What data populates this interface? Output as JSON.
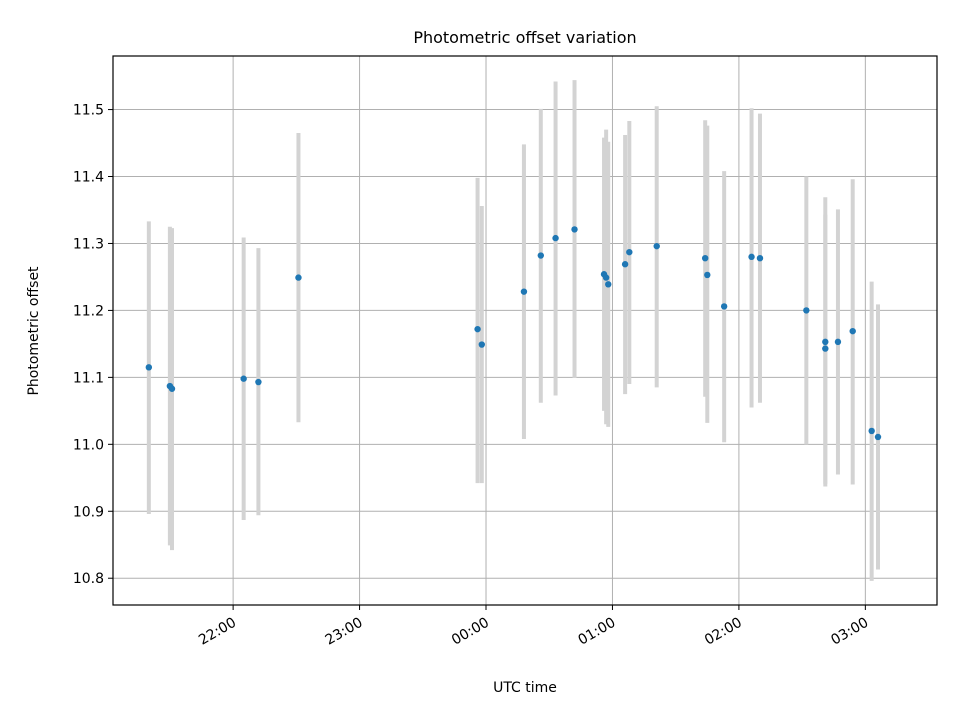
{
  "chart_data": {
    "type": "scatter",
    "title": "Photometric offset variation",
    "xlabel": "UTC time",
    "ylabel": "Photometric offset",
    "x_ticks": [
      "22:00",
      "23:00",
      "00:00",
      "01:00",
      "02:00",
      "03:00"
    ],
    "y_ticks": [
      "10.8",
      "10.9",
      "11.0",
      "11.1",
      "11.2",
      "11.3",
      "11.4",
      "11.5"
    ],
    "xlim": [
      "21:03",
      "03:34"
    ],
    "ylim": [
      10.76,
      11.58
    ],
    "grid": true,
    "colors": {
      "points": "#1f77b4",
      "errorbars": "#d3d3d3",
      "grid": "#b0b0b0"
    },
    "points": [
      {
        "t": "21:20",
        "y": 11.115,
        "lo": 10.896,
        "hi": 11.333
      },
      {
        "t": "21:30",
        "y": 11.087,
        "lo": 10.849,
        "hi": 11.325
      },
      {
        "t": "21:31",
        "y": 11.083,
        "lo": 10.842,
        "hi": 11.323
      },
      {
        "t": "22:05",
        "y": 11.098,
        "lo": 10.887,
        "hi": 11.309
      },
      {
        "t": "22:12",
        "y": 11.093,
        "lo": 10.894,
        "hi": 11.293
      },
      {
        "t": "22:31",
        "y": 11.249,
        "lo": 11.033,
        "hi": 11.465
      },
      {
        "t": "23:56",
        "y": 11.172,
        "lo": 10.942,
        "hi": 11.398
      },
      {
        "t": "23:58",
        "y": 11.149,
        "lo": 10.942,
        "hi": 11.356
      },
      {
        "t": "00:18",
        "y": 11.228,
        "lo": 11.008,
        "hi": 11.448
      },
      {
        "t": "00:26",
        "y": 11.282,
        "lo": 11.062,
        "hi": 11.501
      },
      {
        "t": "00:33",
        "y": 11.308,
        "lo": 11.073,
        "hi": 11.542
      },
      {
        "t": "00:42",
        "y": 11.321,
        "lo": 11.099,
        "hi": 11.544
      },
      {
        "t": "00:56",
        "y": 11.254,
        "lo": 11.05,
        "hi": 11.458
      },
      {
        "t": "00:57",
        "y": 11.249,
        "lo": 11.03,
        "hi": 11.47
      },
      {
        "t": "00:58",
        "y": 11.239,
        "lo": 11.026,
        "hi": 11.452
      },
      {
        "t": "01:06",
        "y": 11.269,
        "lo": 11.075,
        "hi": 11.462
      },
      {
        "t": "01:08",
        "y": 11.287,
        "lo": 11.09,
        "hi": 11.483
      },
      {
        "t": "01:21",
        "y": 11.296,
        "lo": 11.085,
        "hi": 11.505
      },
      {
        "t": "01:44",
        "y": 11.278,
        "lo": 11.071,
        "hi": 11.484
      },
      {
        "t": "01:45",
        "y": 11.253,
        "lo": 11.032,
        "hi": 11.476
      },
      {
        "t": "01:53",
        "y": 11.206,
        "lo": 11.003,
        "hi": 11.408
      },
      {
        "t": "02:06",
        "y": 11.28,
        "lo": 11.055,
        "hi": 11.502
      },
      {
        "t": "02:10",
        "y": 11.278,
        "lo": 11.062,
        "hi": 11.494
      },
      {
        "t": "02:32",
        "y": 11.2,
        "lo": 11.0,
        "hi": 11.4
      },
      {
        "t": "02:41",
        "y": 11.153,
        "lo": 10.941,
        "hi": 11.369
      },
      {
        "t": "02:41",
        "y": 11.143,
        "lo": 10.937,
        "hi": 11.343
      },
      {
        "t": "02:47",
        "y": 11.153,
        "lo": 10.955,
        "hi": 11.351
      },
      {
        "t": "02:54",
        "y": 11.169,
        "lo": 10.94,
        "hi": 11.396
      },
      {
        "t": "03:03",
        "y": 11.02,
        "lo": 10.796,
        "hi": 11.243
      },
      {
        "t": "03:06",
        "y": 11.011,
        "lo": 10.813,
        "hi": 11.209
      }
    ]
  }
}
